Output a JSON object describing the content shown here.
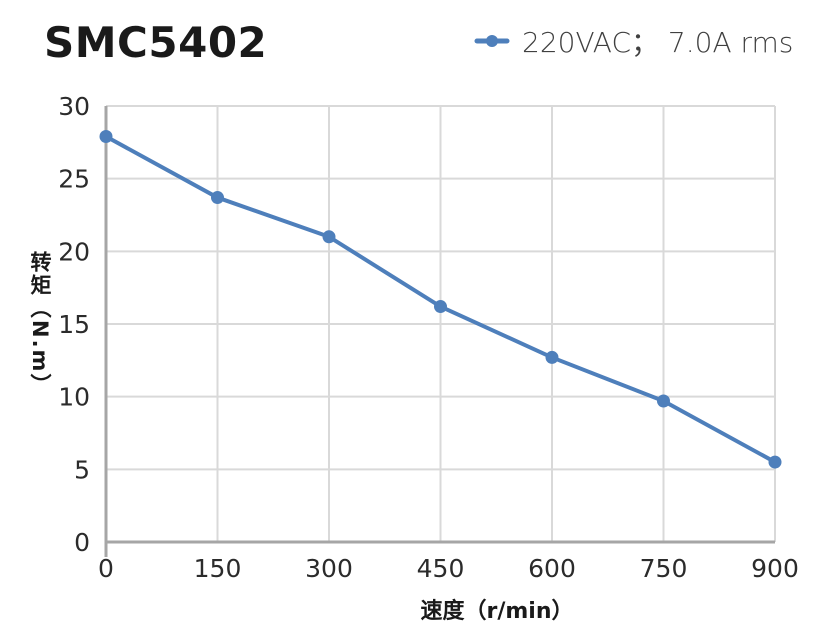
{
  "title": "SMC5402",
  "legend": {
    "label": "220VAC； 7.0A rms"
  },
  "chart_data": {
    "type": "line",
    "title": "SMC5402",
    "x": [
      0,
      150,
      300,
      450,
      600,
      750,
      900
    ],
    "series": [
      {
        "name": "220VAC； 7.0A rms",
        "values": [
          27.9,
          23.7,
          21.0,
          16.2,
          12.7,
          9.7,
          5.5
        ],
        "color": "#4e7fbb"
      }
    ],
    "xlabel": "速度（r/min）",
    "ylabel": "转矩（N.m）",
    "xlim": [
      0,
      900
    ],
    "ylim": [
      0,
      30
    ],
    "x_ticks": [
      0,
      150,
      300,
      450,
      600,
      750,
      900
    ],
    "y_ticks": [
      0,
      5,
      10,
      15,
      20,
      25,
      30
    ],
    "grid": true,
    "legend_position": "top-right",
    "colors": {
      "line": "#4e7fbb",
      "grid": "#d9d9d9",
      "axis": "#a6a6a6",
      "tick_text": "#2b2b2b",
      "title_text": "#1a1a1a",
      "legend_text": "#404040"
    }
  }
}
